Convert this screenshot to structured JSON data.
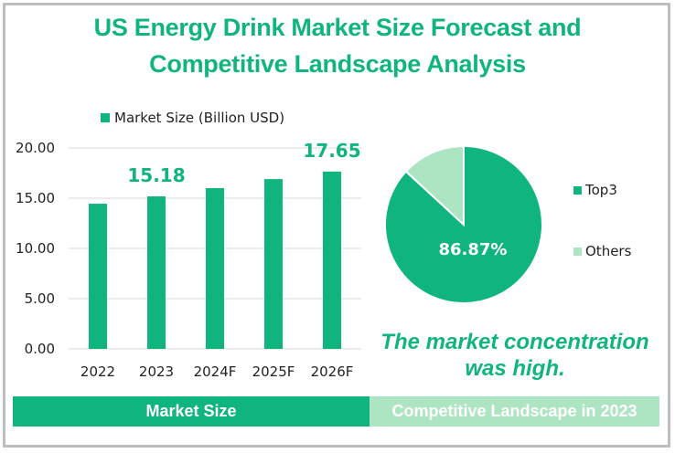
{
  "title_line1": "US Energy Drink Market Size Forecast and",
  "title_line2": "Competitive Landscape Analysis",
  "colors": {
    "primary": "#10b47f",
    "light": "#ade5c2",
    "grid": "#d9d9d9"
  },
  "note": "The market concentration was high.",
  "banners": {
    "left": "Market Size",
    "right": "Competitive Landscape in 2023"
  },
  "chart_data": [
    {
      "type": "bar",
      "title": "",
      "legend": "Market Size (Billion USD)",
      "legend_position": "top",
      "categories": [
        "2022",
        "2023",
        "2024F",
        "2025F",
        "2026F"
      ],
      "values": [
        14.45,
        15.18,
        16.0,
        16.9,
        17.65
      ],
      "data_labels": [
        null,
        "15.18",
        null,
        null,
        "17.65"
      ],
      "yticks": [
        "0.00",
        "5.00",
        "10.00",
        "15.00",
        "20.00"
      ],
      "ylim": [
        0,
        20
      ],
      "grid": true,
      "xlabel": "",
      "ylabel": ""
    },
    {
      "type": "pie",
      "title": "",
      "labels": [
        "Top3",
        "Others"
      ],
      "values": [
        86.87,
        13.13
      ],
      "data_labels": [
        "86.87%",
        null
      ],
      "legend_position": "right"
    }
  ]
}
